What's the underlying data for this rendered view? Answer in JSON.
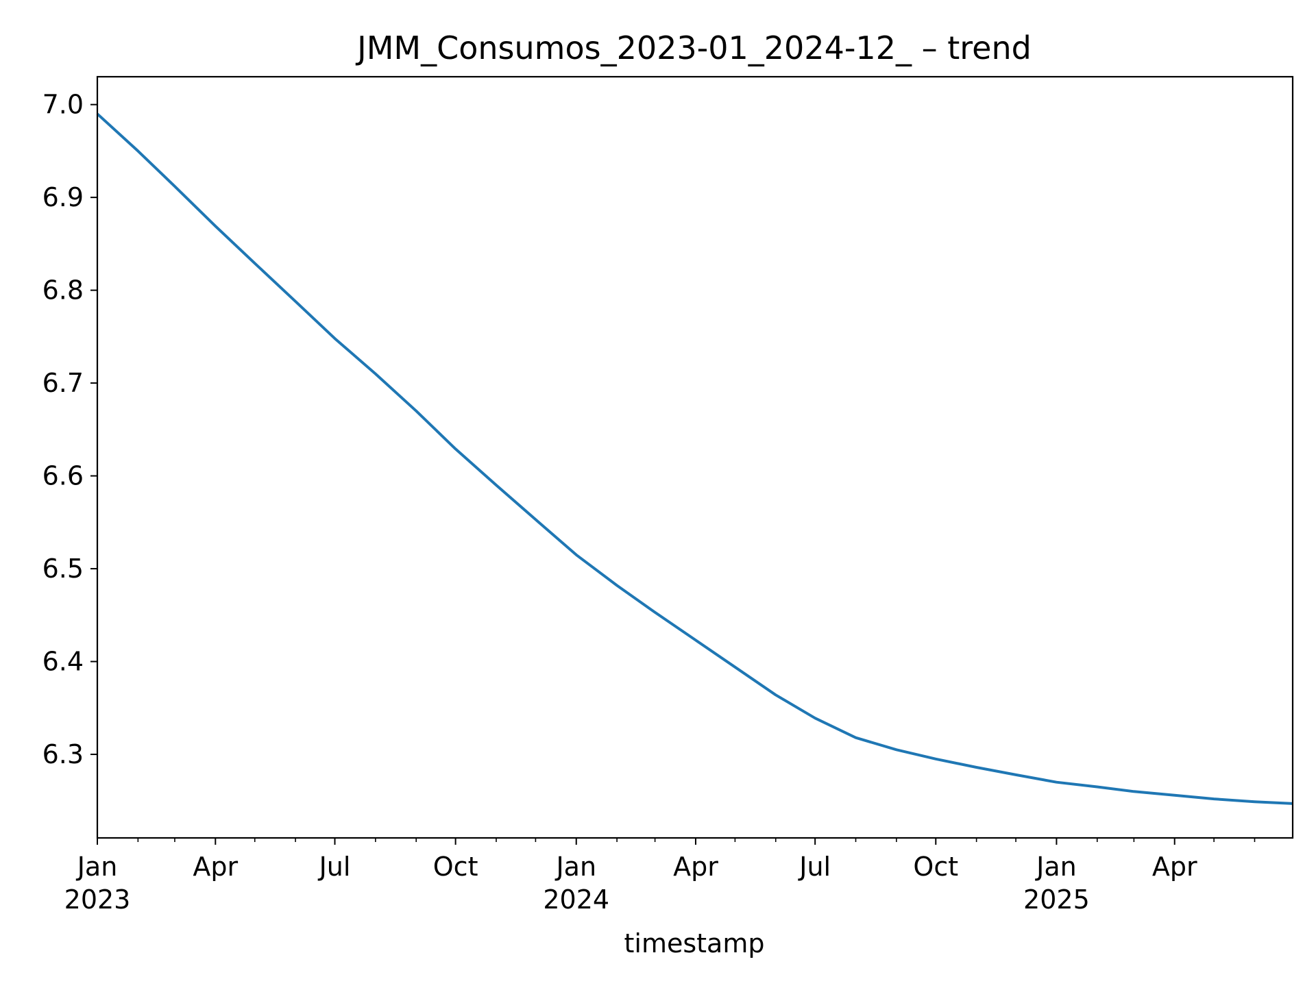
{
  "chart_data": {
    "type": "line",
    "title": "JMM_Consumos_2023-01_2024-12_ – trend",
    "xlabel": "timestamp",
    "ylabel": "",
    "ylim": [
      6.21,
      7.03
    ],
    "xlim": [
      "2023-01-01",
      "2025-06-30"
    ],
    "grid": false,
    "legend": "none",
    "line_color": "#1f77b4",
    "yticks": [
      "6.3",
      "6.4",
      "6.5",
      "6.6",
      "6.7",
      "6.8",
      "6.9",
      "7.0"
    ],
    "xticks_major": [
      {
        "date": "2023-01-01",
        "label": [
          "Jan",
          "2023"
        ]
      },
      {
        "date": "2023-04-01",
        "label": [
          "Apr"
        ]
      },
      {
        "date": "2023-07-01",
        "label": [
          "Jul"
        ]
      },
      {
        "date": "2023-10-01",
        "label": [
          "Oct"
        ]
      },
      {
        "date": "2024-01-01",
        "label": [
          "Jan",
          "2024"
        ]
      },
      {
        "date": "2024-04-01",
        "label": [
          "Apr"
        ]
      },
      {
        "date": "2024-07-01",
        "label": [
          "Jul"
        ]
      },
      {
        "date": "2024-10-01",
        "label": [
          "Oct"
        ]
      },
      {
        "date": "2025-01-01",
        "label": [
          "Jan",
          "2025"
        ]
      },
      {
        "date": "2025-04-01",
        "label": [
          "Apr"
        ]
      }
    ],
    "xticks_minor": [
      "2023-02-01",
      "2023-03-01",
      "2023-05-01",
      "2023-06-01",
      "2023-08-01",
      "2023-09-01",
      "2023-11-01",
      "2023-12-01",
      "2024-02-01",
      "2024-03-01",
      "2024-05-01",
      "2024-06-01",
      "2024-08-01",
      "2024-09-01",
      "2024-11-01",
      "2024-12-01",
      "2025-02-01",
      "2025-03-01",
      "2025-05-01",
      "2025-06-01"
    ],
    "series": [
      {
        "x": [
          "2023-01-01",
          "2023-02-01",
          "2023-03-01",
          "2023-04-01",
          "2023-05-01",
          "2023-06-01",
          "2023-07-01",
          "2023-08-01",
          "2023-09-01",
          "2023-10-01",
          "2023-11-01",
          "2023-12-01",
          "2024-01-01",
          "2024-02-01",
          "2024-03-01",
          "2024-04-01",
          "2024-05-01",
          "2024-06-01",
          "2024-07-01",
          "2024-08-01",
          "2024-09-01",
          "2024-10-01",
          "2024-11-01",
          "2024-12-01",
          "2025-01-01",
          "2025-02-01",
          "2025-03-01",
          "2025-04-01",
          "2025-05-01",
          "2025-06-01",
          "2025-06-30"
        ],
        "y": [
          6.99,
          6.95,
          6.912,
          6.869,
          6.829,
          6.788,
          6.748,
          6.71,
          6.67,
          6.629,
          6.59,
          6.553,
          6.515,
          6.482,
          6.453,
          6.423,
          6.394,
          6.364,
          6.339,
          6.318,
          6.305,
          6.295,
          6.286,
          6.278,
          6.27,
          6.265,
          6.26,
          6.256,
          6.252,
          6.249,
          6.247
        ]
      }
    ]
  }
}
